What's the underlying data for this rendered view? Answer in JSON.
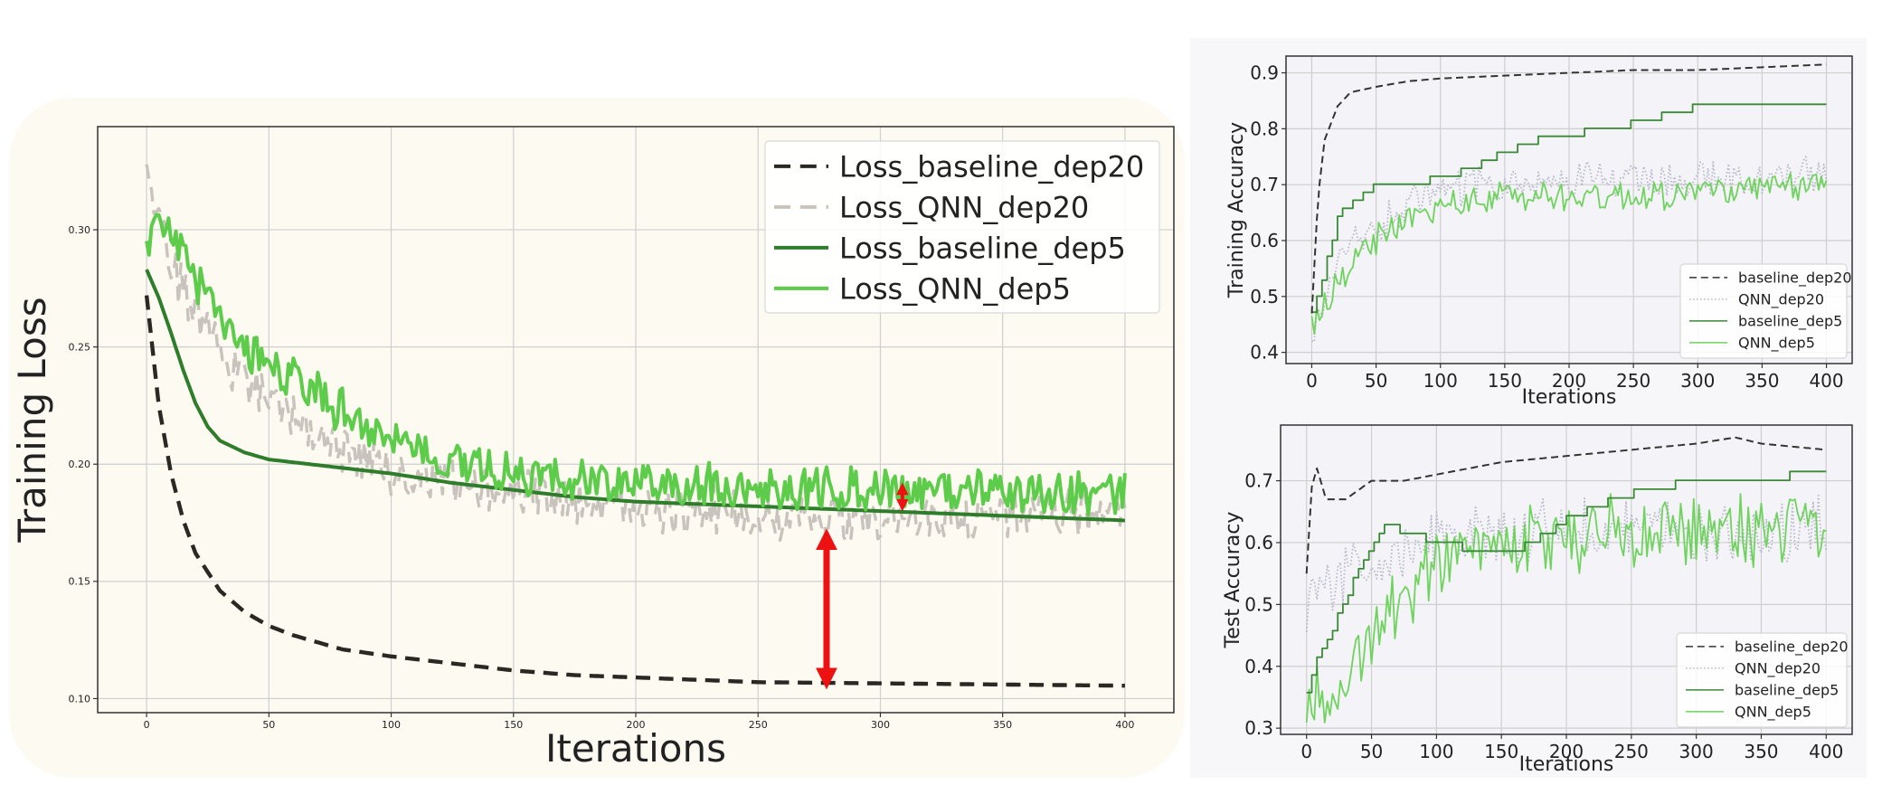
{
  "chart_data": [
    {
      "type": "line",
      "xlabel": "Iterations",
      "ylabel": "Training Loss",
      "xlim": [
        -20,
        420
      ],
      "ylim": [
        0.094,
        0.344
      ],
      "xticks": [
        0,
        50,
        100,
        150,
        200,
        250,
        300,
        350,
        400
      ],
      "yticks": [
        0.1,
        0.15,
        0.2,
        0.25,
        0.3
      ],
      "ytick_labels": [
        "0.10",
        "0.15",
        "0.20",
        "0.25",
        "0.30"
      ],
      "grid": true,
      "legend_position": "top-right",
      "series": [
        {
          "name": "Loss_baseline_dep20",
          "style": "dashed",
          "color": "#2b2824",
          "x": [
            0,
            5,
            10,
            15,
            20,
            30,
            40,
            50,
            60,
            80,
            100,
            125,
            150,
            175,
            200,
            250,
            300,
            350,
            400
          ],
          "values": [
            0.272,
            0.225,
            0.196,
            0.176,
            0.162,
            0.146,
            0.137,
            0.131,
            0.127,
            0.121,
            0.118,
            0.115,
            0.112,
            0.11,
            0.109,
            0.107,
            0.1065,
            0.106,
            0.1055
          ]
        },
        {
          "name": "Loss_QNN_dep20",
          "style": "dashed",
          "color": "#c9c3bd",
          "x": [
            0,
            5,
            10,
            20,
            30,
            40,
            50,
            75,
            100,
            125,
            150,
            175,
            200,
            250,
            300,
            350,
            400
          ],
          "values": [
            0.335,
            0.305,
            0.283,
            0.265,
            0.248,
            0.236,
            0.226,
            0.21,
            0.197,
            0.191,
            0.187,
            0.184,
            0.182,
            0.178,
            0.177,
            0.178,
            0.18
          ]
        },
        {
          "name": "Loss_baseline_dep5",
          "style": "solid",
          "color": "#2e7d2b",
          "x": [
            0,
            5,
            10,
            15,
            20,
            25,
            30,
            40,
            50,
            75,
            100,
            125,
            150,
            175,
            200,
            250,
            300,
            350,
            400
          ],
          "values": [
            0.283,
            0.271,
            0.256,
            0.24,
            0.226,
            0.216,
            0.21,
            0.205,
            0.202,
            0.199,
            0.196,
            0.192,
            0.189,
            0.186,
            0.184,
            0.182,
            0.18,
            0.178,
            0.176
          ]
        },
        {
          "name": "Loss_QNN_dep5",
          "style": "solid",
          "color": "#5ccc4a",
          "x": [
            0,
            5,
            10,
            20,
            30,
            40,
            50,
            75,
            100,
            125,
            150,
            175,
            200,
            250,
            300,
            350,
            400
          ],
          "values": [
            0.297,
            0.303,
            0.3,
            0.278,
            0.264,
            0.252,
            0.242,
            0.226,
            0.21,
            0.201,
            0.196,
            0.193,
            0.191,
            0.19,
            0.189,
            0.188,
            0.187
          ]
        }
      ]
    },
    {
      "type": "line",
      "xlabel": "Iterations",
      "ylabel": "Training Accuracy",
      "xlim": [
        -20,
        420
      ],
      "ylim": [
        0.38,
        0.93
      ],
      "xticks": [
        0,
        50,
        100,
        150,
        200,
        250,
        300,
        350,
        400
      ],
      "yticks": [
        0.4,
        0.5,
        0.6,
        0.7,
        0.8,
        0.9
      ],
      "ytick_labels": [
        "0.4",
        "0.5",
        "0.6",
        "0.7",
        "0.8",
        "0.9"
      ],
      "grid": true,
      "legend_position": "bottom-right",
      "series": [
        {
          "name": "baseline_dep20",
          "style": "dashed",
          "color": "#333333",
          "x": [
            0,
            5,
            10,
            20,
            30,
            40,
            50,
            75,
            100,
            150,
            200,
            250,
            300,
            350,
            400
          ],
          "values": [
            0.47,
            0.68,
            0.78,
            0.84,
            0.865,
            0.87,
            0.875,
            0.885,
            0.89,
            0.895,
            0.9,
            0.905,
            0.905,
            0.91,
            0.915
          ]
        },
        {
          "name": "QNN_dep20",
          "style": "dotted",
          "color": "#b9b9c9",
          "x": [
            0,
            10,
            25,
            50,
            75,
            100,
            150,
            200,
            250,
            300,
            350,
            400
          ],
          "values": [
            0.42,
            0.5,
            0.57,
            0.62,
            0.66,
            0.69,
            0.7,
            0.71,
            0.71,
            0.71,
            0.71,
            0.72
          ]
        },
        {
          "name": "baseline_dep5",
          "style": "solid",
          "color": "#3a8a36",
          "x": [
            0,
            10,
            20,
            30,
            50,
            100,
            125,
            150,
            175,
            200,
            250,
            300,
            350,
            400
          ],
          "values": [
            0.47,
            0.55,
            0.64,
            0.67,
            0.7,
            0.71,
            0.73,
            0.76,
            0.78,
            0.79,
            0.81,
            0.84,
            0.85,
            0.84
          ]
        },
        {
          "name": "QNN_dep5",
          "style": "solid",
          "color": "#6fd35e",
          "x": [
            0,
            10,
            25,
            50,
            75,
            100,
            150,
            200,
            250,
            300,
            350,
            400
          ],
          "values": [
            0.45,
            0.49,
            0.54,
            0.6,
            0.64,
            0.66,
            0.68,
            0.68,
            0.68,
            0.69,
            0.69,
            0.7
          ]
        }
      ]
    },
    {
      "type": "line",
      "xlabel": "Iterations",
      "ylabel": "Test Accuracy",
      "xlim": [
        -20,
        420
      ],
      "ylim": [
        0.29,
        0.79
      ],
      "xticks": [
        0,
        50,
        100,
        150,
        200,
        250,
        300,
        350,
        400
      ],
      "yticks": [
        0.3,
        0.4,
        0.5,
        0.6,
        0.7
      ],
      "ytick_labels": [
        "0.3",
        "0.4",
        "0.5",
        "0.6",
        "0.7"
      ],
      "grid": true,
      "legend_position": "bottom-right",
      "series": [
        {
          "name": "baseline_dep20",
          "style": "dashed",
          "color": "#333333",
          "x": [
            0,
            4,
            8,
            15,
            30,
            50,
            75,
            100,
            150,
            200,
            250,
            300,
            330,
            350,
            400
          ],
          "values": [
            0.55,
            0.69,
            0.72,
            0.67,
            0.67,
            0.7,
            0.7,
            0.71,
            0.73,
            0.74,
            0.75,
            0.76,
            0.77,
            0.76,
            0.75
          ]
        },
        {
          "name": "QNN_dep20",
          "style": "dotted",
          "color": "#b9b9c9",
          "x": [
            0,
            25,
            50,
            100,
            150,
            200,
            250,
            300,
            350,
            400
          ],
          "values": [
            0.5,
            0.54,
            0.57,
            0.6,
            0.61,
            0.62,
            0.62,
            0.62,
            0.62,
            0.62
          ]
        },
        {
          "name": "baseline_dep5",
          "style": "solid",
          "color": "#3a8a36",
          "x": [
            0,
            10,
            20,
            40,
            60,
            100,
            150,
            175,
            200,
            250,
            300,
            350,
            400
          ],
          "values": [
            0.36,
            0.42,
            0.46,
            0.56,
            0.63,
            0.6,
            0.58,
            0.6,
            0.64,
            0.68,
            0.7,
            0.7,
            0.72
          ]
        },
        {
          "name": "QNN_dep5",
          "style": "solid",
          "color": "#6fd35e",
          "x": [
            0,
            25,
            50,
            75,
            100,
            150,
            200,
            250,
            300,
            350,
            400
          ],
          "values": [
            0.33,
            0.38,
            0.44,
            0.52,
            0.56,
            0.6,
            0.61,
            0.62,
            0.62,
            0.62,
            0.62
          ]
        }
      ]
    }
  ]
}
